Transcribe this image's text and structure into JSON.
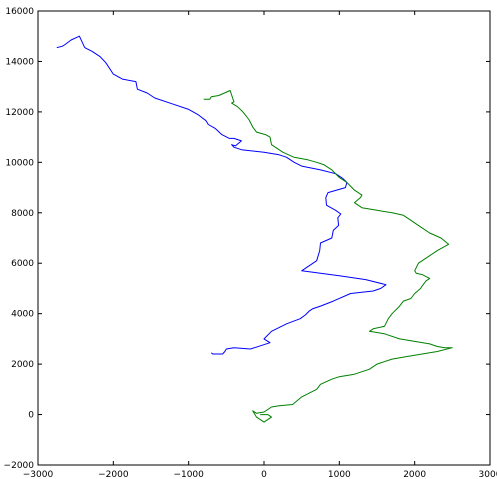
{
  "chart_data": {
    "type": "line",
    "title": "",
    "xlabel": "",
    "ylabel": "",
    "xlim": [
      -3000,
      3000
    ],
    "ylim": [
      -2000,
      16000
    ],
    "x_ticks": [
      -3000,
      -2000,
      -1000,
      0,
      1000,
      2000,
      3000
    ],
    "x_tick_labels": [
      "−3000",
      "−2000",
      "−1000",
      "0",
      "1000",
      "2000",
      "3000"
    ],
    "y_ticks": [
      -2000,
      0,
      2000,
      4000,
      6000,
      8000,
      10000,
      12000,
      14000,
      16000
    ],
    "y_tick_labels": [
      "−2000",
      "0",
      "2000",
      "4000",
      "6000",
      "8000",
      "10000",
      "12000",
      "14000",
      "16000"
    ],
    "grid": false,
    "series": [
      {
        "color": "#0000ff",
        "x": [
          -2750,
          -2680,
          -2650,
          -2560,
          -2450,
          -2380,
          -2280,
          -2180,
          -2100,
          -2000,
          -1880,
          -1700,
          -1680,
          -1550,
          -1450,
          -1200,
          -1000,
          -880,
          -770,
          -740,
          -650,
          -560,
          -460,
          -400,
          -300,
          -380,
          -430,
          -400,
          -300,
          -150,
          0,
          200,
          300,
          400,
          500,
          750,
          950,
          1050,
          1100,
          1080,
          850,
          820,
          830,
          950,
          1020,
          980,
          990,
          920,
          900,
          750,
          740,
          700,
          500,
          1000,
          1350,
          1620,
          1550,
          1450,
          1150,
          920,
          750,
          650,
          600,
          550,
          480,
          300,
          100,
          0,
          80,
          -180,
          -400,
          -500,
          -520,
          -550,
          -680,
          -700
        ],
        "y": [
          14550,
          14600,
          14650,
          14850,
          15000,
          14550,
          14400,
          14200,
          13950,
          13500,
          13300,
          13200,
          12900,
          12750,
          12550,
          12300,
          12100,
          11900,
          11650,
          11500,
          11350,
          11100,
          10950,
          10950,
          10850,
          10650,
          10700,
          10600,
          10500,
          10450,
          10400,
          10300,
          10200,
          10000,
          9850,
          9700,
          9550,
          9350,
          9200,
          9000,
          8800,
          8600,
          8300,
          8100,
          7950,
          7800,
          7500,
          7300,
          7000,
          6800,
          6500,
          6100,
          5700,
          5500,
          5350,
          5150,
          5000,
          4900,
          4800,
          4500,
          4300,
          4200,
          4100,
          3950,
          3800,
          3600,
          3300,
          3000,
          2850,
          2600,
          2650,
          2600,
          2500,
          2400,
          2400,
          2450
        ]
      },
      {
        "color": "#008000",
        "x": [
          -800,
          -720,
          -700,
          -600,
          -450,
          -400,
          -430,
          -350,
          -280,
          -200,
          -150,
          -100,
          20,
          80,
          100,
          250,
          400,
          580,
          700,
          800,
          900,
          1000,
          1100,
          1200,
          1300,
          1280,
          1200,
          1300,
          1500,
          1700,
          1850,
          1950,
          2050,
          2200,
          2350,
          2450,
          2300,
          2200,
          2050,
          2000,
          2020,
          2100,
          2200,
          2150,
          2100,
          2080,
          2000,
          1950,
          1850,
          1800,
          1700,
          1650,
          1600,
          1450,
          1400,
          1600,
          1800,
          2000,
          2200,
          2300,
          2400,
          2500,
          2300,
          2100,
          1900,
          1700,
          1500,
          1400,
          1200,
          1000,
          900,
          750,
          700,
          500,
          380,
          200,
          100,
          50,
          0,
          -100,
          -150,
          -100,
          0,
          100,
          50,
          -50
        ],
        "y": [
          12500,
          12500,
          12600,
          12650,
          12850,
          12400,
          12350,
          12200,
          12000,
          11700,
          11400,
          11200,
          11100,
          11000,
          10700,
          10400,
          10200,
          10100,
          10000,
          9900,
          9700,
          9400,
          9200,
          8900,
          8700,
          8600,
          8400,
          8200,
          8100,
          8000,
          7900,
          7700,
          7500,
          7200,
          7000,
          6750,
          6500,
          6300,
          6000,
          5700,
          5600,
          5550,
          5400,
          5300,
          5100,
          5000,
          4800,
          4600,
          4500,
          4300,
          4000,
          3800,
          3500,
          3400,
          3300,
          3200,
          3000,
          2900,
          2800,
          2700,
          2650,
          2650,
          2500,
          2400,
          2300,
          2200,
          2000,
          1800,
          1600,
          1500,
          1400,
          1200,
          1000,
          700,
          400,
          350,
          300,
          200,
          100,
          50,
          150,
          -100,
          -300,
          -100,
          0,
          0
        ]
      }
    ]
  }
}
